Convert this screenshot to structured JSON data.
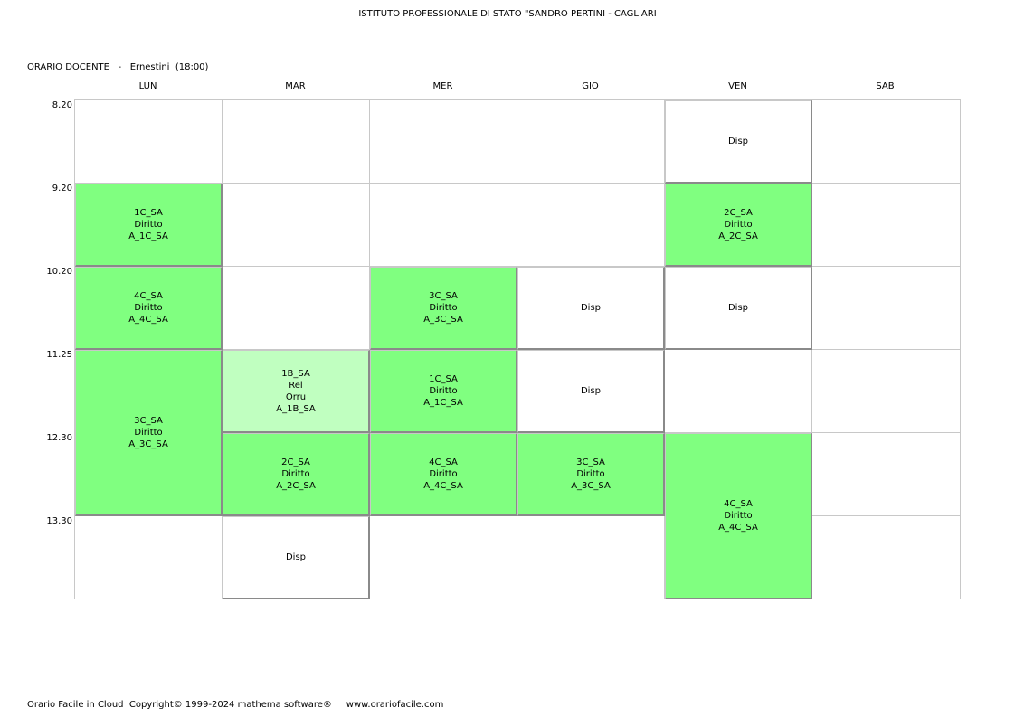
{
  "header": {
    "school": "ISTITUTO PROFESSIONALE DI STATO \"SANDRO PERTINI - CAGLIARI",
    "label": "ORARIO DOCENTE",
    "separator": "-",
    "teacher": "Ernestini",
    "hours": "(18:00)"
  },
  "days": [
    "LUN",
    "MAR",
    "MER",
    "GIO",
    "VEN",
    "SAB"
  ],
  "times": [
    "8.20",
    "9.20",
    "10.20",
    "11.25",
    "12.30",
    "13.30"
  ],
  "lessons": [
    {
      "id": "lun-2",
      "lines": [
        "1C_SA",
        "Diritto",
        "A_1C_SA"
      ],
      "kind": "green"
    },
    {
      "id": "lun-3",
      "lines": [
        "4C_SA",
        "Diritto",
        "A_4C_SA"
      ],
      "kind": "green"
    },
    {
      "id": "lun-45",
      "lines": [
        "3C_SA",
        "Diritto",
        "A_3C_SA"
      ],
      "kind": "green"
    },
    {
      "id": "mar-4",
      "lines": [
        "1B_SA",
        "Rel",
        "Orru",
        "A_1B_SA"
      ],
      "kind": "lightgreen"
    },
    {
      "id": "mar-5",
      "lines": [
        "2C_SA",
        "Diritto",
        "A_2C_SA"
      ],
      "kind": "green"
    },
    {
      "id": "mar-6",
      "lines": [
        "Disp"
      ],
      "kind": "disp"
    },
    {
      "id": "mer-3",
      "lines": [
        "3C_SA",
        "Diritto",
        "A_3C_SA"
      ],
      "kind": "green"
    },
    {
      "id": "mer-4",
      "lines": [
        "1C_SA",
        "Diritto",
        "A_1C_SA"
      ],
      "kind": "green"
    },
    {
      "id": "mer-5",
      "lines": [
        "4C_SA",
        "Diritto",
        "A_4C_SA"
      ],
      "kind": "green"
    },
    {
      "id": "gio-3",
      "lines": [
        "Disp"
      ],
      "kind": "disp"
    },
    {
      "id": "gio-4",
      "lines": [
        "Disp"
      ],
      "kind": "disp"
    },
    {
      "id": "gio-5",
      "lines": [
        "3C_SA",
        "Diritto",
        "A_3C_SA"
      ],
      "kind": "green"
    },
    {
      "id": "ven-1",
      "lines": [
        "Disp"
      ],
      "kind": "disp"
    },
    {
      "id": "ven-2",
      "lines": [
        "2C_SA",
        "Diritto",
        "A_2C_SA"
      ],
      "kind": "green"
    },
    {
      "id": "ven-3",
      "lines": [
        "Disp"
      ],
      "kind": "disp"
    },
    {
      "id": "ven-56",
      "lines": [
        "4C_SA",
        "Diritto",
        "A_4C_SA"
      ],
      "kind": "green"
    }
  ],
  "colors": {
    "lesson": "#80ff80",
    "lesson_light": "#c0ffc0",
    "grid": "#c8c8c8"
  },
  "footer": {
    "product": "Orario Facile in Cloud",
    "copyright": "Copyright© 1999-2024 mathema software®",
    "website": "www.orariofacile.com"
  }
}
